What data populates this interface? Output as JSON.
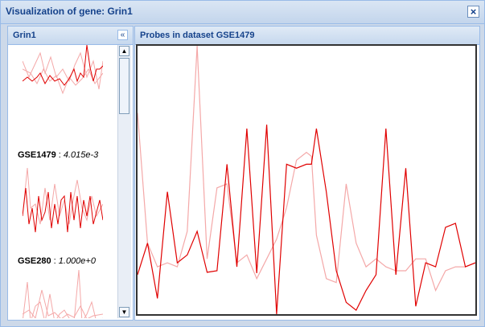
{
  "window": {
    "title": "Visualization of gene: Grin1",
    "close_glyph": "×"
  },
  "left_panel": {
    "title": "Grin1",
    "collapse_glyph": "«",
    "items": [
      {
        "dataset": "GSE1479",
        "value": "4.015e-3"
      },
      {
        "dataset": "GSE280",
        "value": "1.000e+0"
      }
    ]
  },
  "right_panel": {
    "title": "Probes in dataset GSE1479"
  },
  "colors": {
    "dark_series": "#e00000",
    "light_series": "#f4a8a8",
    "header_text": "#15428b"
  },
  "chart_data": {
    "type": "line",
    "title": "",
    "x": [
      1,
      2,
      3,
      4,
      5,
      6,
      7,
      8,
      9,
      10,
      11,
      12,
      13,
      14,
      15,
      16,
      17,
      18,
      18.5,
      19,
      20,
      21,
      22,
      23,
      24,
      25,
      26,
      27,
      28,
      29,
      30,
      31,
      32,
      33,
      34,
      35
    ],
    "series": [
      {
        "values": [
          290,
          250,
          320,
          185,
          275,
          265,
          235,
          287,
          285,
          150,
          280,
          105,
          288,
          100,
          340,
          150,
          155,
          150,
          150,
          105,
          185,
          285,
          325,
          335,
          310,
          290,
          105,
          290,
          155,
          330,
          275,
          280,
          230,
          225,
          280,
          275
        ]
      },
      {
        "values": [
          85,
          250,
          280,
          275,
          280,
          235,
          0,
          270,
          180,
          175,
          275,
          265,
          295,
          270,
          245,
          205,
          145,
          135,
          140,
          240,
          295,
          300,
          175,
          250,
          280,
          270,
          280,
          285,
          285,
          270,
          270,
          310,
          285,
          280,
          280,
          275
        ]
      }
    ]
  }
}
